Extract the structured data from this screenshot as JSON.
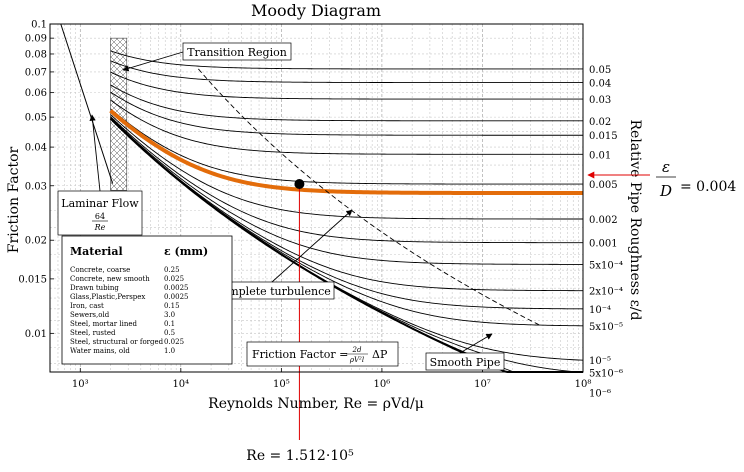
{
  "chart_data": {
    "type": "line",
    "title": "Moody Diagram",
    "xlabel": "Reynolds Number, Re = ρVd/μ",
    "ylabel": "Friction Factor",
    "right_label": "Relative Pipe Roughness ε/d",
    "x_scale": "log",
    "y_scale": "log",
    "xlim": [
      500,
      100000000
    ],
    "ylim": [
      0.0075,
      0.1
    ],
    "grid": true,
    "x_ticks": [
      {
        "value": 1000,
        "label": "10³"
      },
      {
        "value": 10000,
        "label": "10⁴"
      },
      {
        "value": 100000,
        "label": "10⁵"
      },
      {
        "value": 1000000,
        "label": "10⁶"
      },
      {
        "value": 10000000,
        "label": "10⁷"
      },
      {
        "value": 100000000,
        "label": "10⁸"
      }
    ],
    "y_ticks": [
      {
        "value": 0.1,
        "label": "0.1"
      },
      {
        "value": 0.09,
        "label": "0.09"
      },
      {
        "value": 0.08,
        "label": "0.08"
      },
      {
        "value": 0.07,
        "label": "0.07"
      },
      {
        "value": 0.06,
        "label": "0.06"
      },
      {
        "value": 0.05,
        "label": "0.05"
      },
      {
        "value": 0.04,
        "label": "0.04"
      },
      {
        "value": 0.03,
        "label": "0.03"
      },
      {
        "value": 0.02,
        "label": "0.02"
      },
      {
        "value": 0.015,
        "label": "0.015"
      },
      {
        "value": 0.01,
        "label": "0.01"
      }
    ],
    "roughness_series": [
      {
        "value": 0.05,
        "label": "0.05"
      },
      {
        "value": 0.04,
        "label": "0.04"
      },
      {
        "value": 0.03,
        "label": "0.03"
      },
      {
        "value": 0.02,
        "label": "0.02"
      },
      {
        "value": 0.015,
        "label": "0.015"
      },
      {
        "value": 0.01,
        "label": "0.01"
      },
      {
        "value": 0.005,
        "label": "0.005"
      },
      {
        "value": 0.002,
        "label": "0.002"
      },
      {
        "value": 0.001,
        "label": "0.001"
      },
      {
        "value": 0.0005,
        "label": "5x10⁻⁴"
      },
      {
        "value": 0.0002,
        "label": "2x10⁻⁴"
      },
      {
        "value": 0.0001,
        "label": "10⁻⁴"
      },
      {
        "value": 5e-05,
        "label": "5x10⁻⁵"
      },
      {
        "value": 1e-05,
        "label": "10⁻⁵"
      },
      {
        "value": 5e-06,
        "label": "5x10⁻⁶"
      },
      {
        "value": 1e-06,
        "label": "10⁻⁶"
      }
    ],
    "highlight": {
      "roughness": 0.004,
      "color": "#e36c0a",
      "point": {
        "re": 151200,
        "f": 0.0304
      },
      "re_label": "Re = 1.512·10⁵",
      "eps_label_lhs_num": "ε",
      "eps_label_lhs_den": "D",
      "eps_label_rhs": "= 0.004",
      "marker_color": "#e00000"
    },
    "annotations": {
      "transition": "Transition Region",
      "complete_turbulence": "Complete turbulence",
      "smooth_pipe": "Smooth Pipe",
      "laminar": "Laminar Flow",
      "laminar_num": "64",
      "laminar_den": "Re",
      "friction_formula_lhs": "Friction Factor =",
      "friction_formula_num": "2d",
      "friction_formula_den": "ρV²l",
      "friction_formula_rhs": "ΔP"
    },
    "material_table": {
      "header_material": "Material",
      "header_eps": "ε (mm)",
      "rows": [
        {
          "material": "Concrete, coarse",
          "eps": "0.25"
        },
        {
          "material": "Concrete, new smooth",
          "eps": "0.025"
        },
        {
          "material": "Drawn tubing",
          "eps": "0.0025"
        },
        {
          "material": "Glass,Plastic,Perspex",
          "eps": "0.0025"
        },
        {
          "material": "Iron, cast",
          "eps": "0.15"
        },
        {
          "material": "Sewers,old",
          "eps": "3.0"
        },
        {
          "material": "Steel, mortar lined",
          "eps": "0.1"
        },
        {
          "material": "Steel, rusted",
          "eps": "0.5"
        },
        {
          "material": "Steel, structural or forged",
          "eps": "0.025"
        },
        {
          "material": "Water mains, old",
          "eps": "1.0"
        }
      ]
    }
  }
}
